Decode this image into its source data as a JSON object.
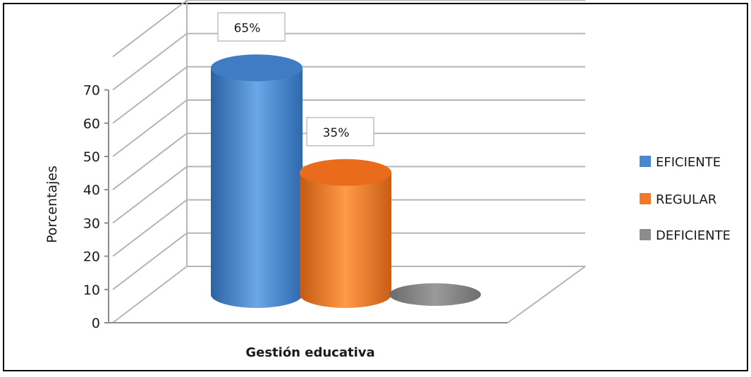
{
  "chart_data": {
    "type": "bar",
    "title": "",
    "xlabel": "Gestión educativa",
    "ylabel": "Porcentajes",
    "ylim": [
      0,
      70
    ],
    "yticks": [
      0,
      10,
      20,
      30,
      40,
      50,
      60,
      70
    ],
    "grid": true,
    "legend_position": "right",
    "series": [
      {
        "name": "EFICIENTE",
        "value": 65,
        "label": "65%",
        "color": "#4a87cf"
      },
      {
        "name": "REGULAR",
        "value": 35,
        "label": "35%",
        "color": "#f07a26"
      },
      {
        "name": "DEFICIENTE",
        "value": 0,
        "label": "",
        "color": "#8c8c8c"
      }
    ]
  }
}
